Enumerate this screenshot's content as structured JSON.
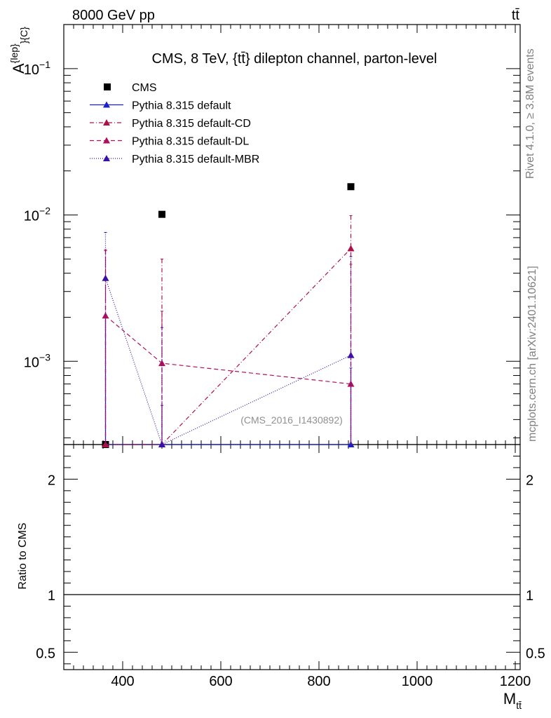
{
  "header": {
    "left_label": "8000 GeV pp",
    "right_label": "tt̄"
  },
  "side_text": {
    "rivet": "Rivet 4.1.0, ≥ 3.8M events",
    "mcplots": "mcplots.cern.ch [arXiv:2401.10621]"
  },
  "chart_data": {
    "type": "scatter",
    "title": "CMS, 8 TeV, {tt̄} dilepton channel, parton-level",
    "ylabel": "A^{lep}_{C}",
    "ylabel_main": "A",
    "ylabel_sup": "{lep}",
    "ylabel_sub": "}{C}",
    "xlabel": "M",
    "xlabel_sub": "tt̄",
    "ratio_ylabel": "Ratio to CMS",
    "analysis_id": "(CMS_2016_I1430892)",
    "xlim": [
      280,
      1210
    ],
    "ylim": [
      0.00027,
      0.2
    ],
    "yscale": "log",
    "ratio_ylim": [
      0.35,
      2.3
    ],
    "x_ticks": [
      "400",
      "600",
      "800",
      "1000",
      "1200"
    ],
    "x_tick_values": [
      400,
      600,
      800,
      1000,
      1200
    ],
    "y_ticks": [
      {
        "value": 0.1,
        "base": "10",
        "exp": "−1"
      },
      {
        "value": 0.01,
        "base": "10",
        "exp": "−2"
      },
      {
        "value": 0.001,
        "base": "10",
        "exp": "−3"
      }
    ],
    "ratio_ticks": [
      {
        "value": 0.5,
        "label": "0.5"
      },
      {
        "value": 1,
        "label": "1"
      },
      {
        "value": 2,
        "label": "2"
      }
    ],
    "x": [
      365,
      480,
      865
    ],
    "series": [
      {
        "name": "CMS",
        "kind": "data",
        "color": "#000000",
        "marker": "square",
        "values": [
          0.00027,
          0.0101,
          0.0156
        ]
      },
      {
        "name": "Pythia 8.315 default",
        "kind": "mc",
        "color": "#1f1fc8",
        "dash": "",
        "marker": "triangle",
        "values": [
          0.00027,
          0.00027,
          0.00027
        ],
        "err_hi": [
          0.002,
          0.0005,
          0.0009
        ]
      },
      {
        "name": "Pythia 8.315 default-CD",
        "kind": "mc",
        "color": "#b0104a",
        "dash": "6 3 1 3",
        "marker": "triangle",
        "values": [
          0.00027,
          0.00027,
          0.0059
        ],
        "err_hi": [
          0.0057,
          0.005,
          0.0099
        ]
      },
      {
        "name": "Pythia 8.315 default-DL",
        "kind": "mc",
        "color": "#b0105a",
        "dash": "6 4",
        "marker": "triangle",
        "values": [
          0.00205,
          0.00097,
          0.0007
        ],
        "err_hi": [
          0.0058,
          0.0022,
          0.0046
        ]
      },
      {
        "name": "Pythia 8.315 default-MBR",
        "kind": "mc",
        "color": "#3a10a8",
        "dash": "1 2",
        "marker": "triangle",
        "values": [
          0.0037,
          0.00027,
          0.0011
        ],
        "err_hi": [
          0.0076,
          0.0017,
          0.0052
        ]
      }
    ],
    "ratio_reference": 1
  }
}
